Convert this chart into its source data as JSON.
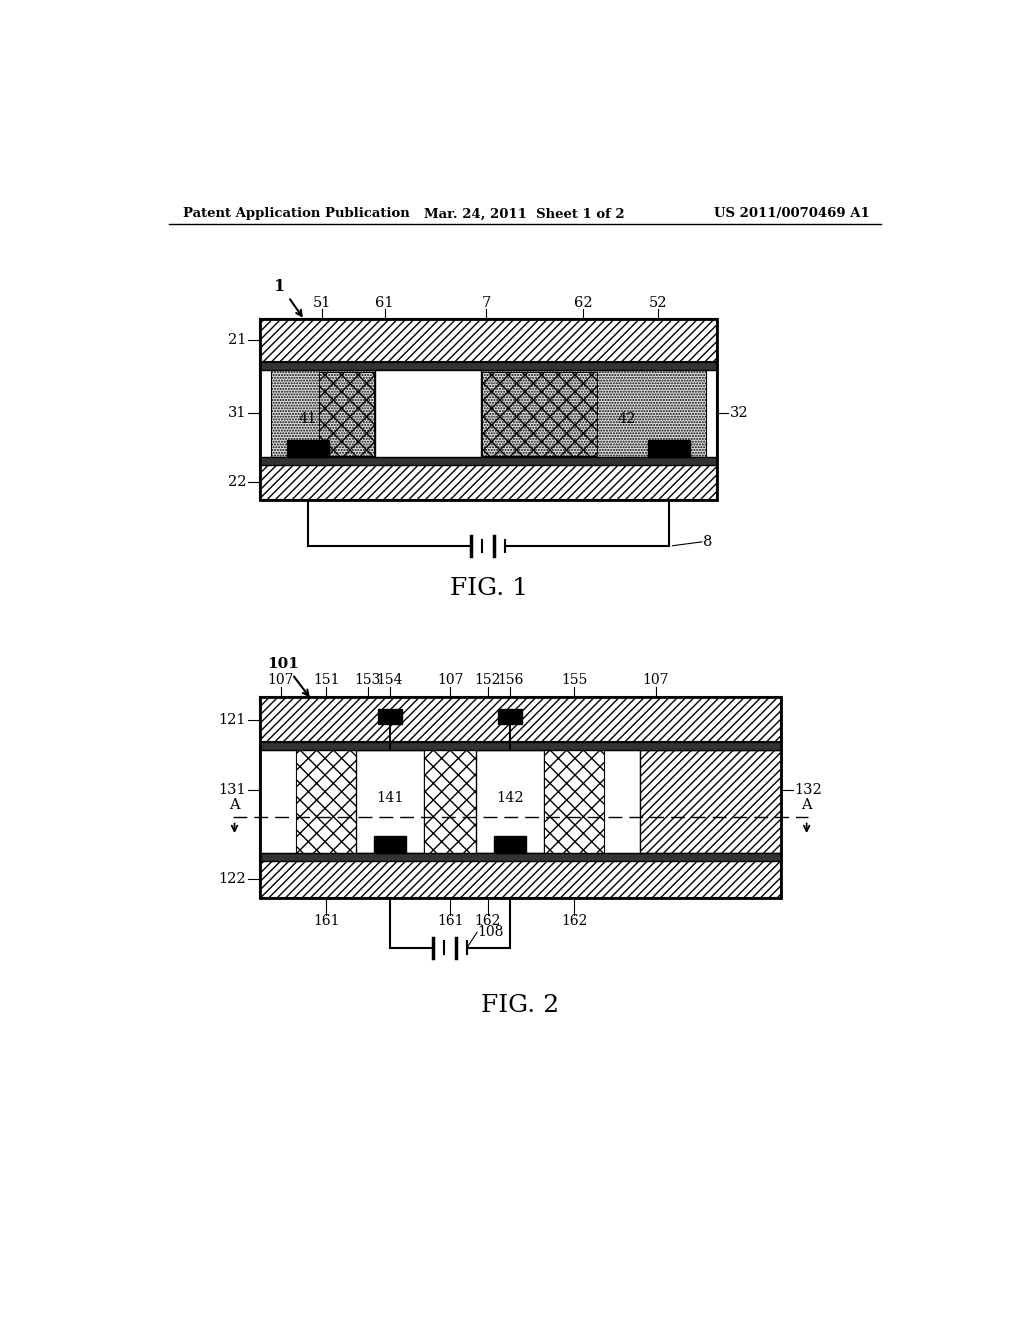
{
  "header_left": "Patent Application Publication",
  "header_center": "Mar. 24, 2011  Sheet 1 of 2",
  "header_right": "US 2011/0070469 A1",
  "fig1_label": "FIG. 1",
  "fig2_label": "FIG. 2",
  "background": "#ffffff"
}
